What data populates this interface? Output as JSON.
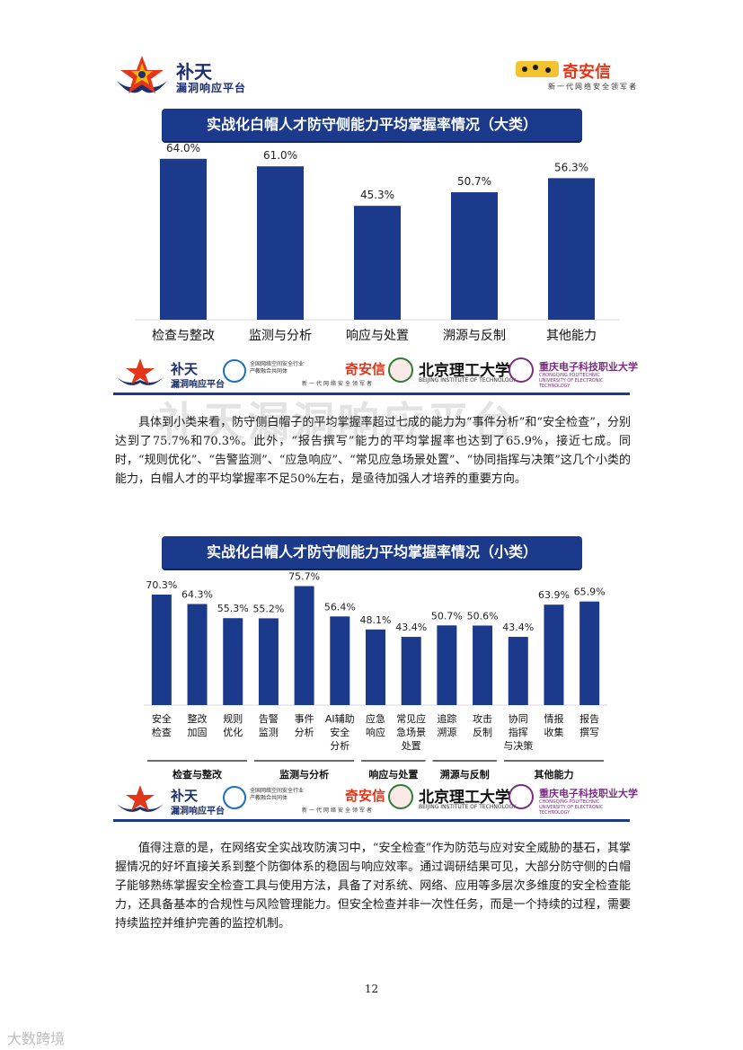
{
  "header": {
    "left_logo": {
      "line1": "补天",
      "line2": "漏洞响应平台"
    },
    "right_logo": {
      "name": "奇安信",
      "slogan": "新一代网络安全领军者"
    }
  },
  "chart_big": {
    "title": "实战化白帽人才防守侧能力平均掌握率情况（大类）"
  },
  "chart_small": {
    "title": "实战化白帽人才防守侧能力平均掌握率情况（小类）"
  },
  "footer_strip": {
    "butian1": "补天",
    "butian2": "漏洞响应平台",
    "cert_text": "全国网络空间安全行业产教融合共同体",
    "qax": "奇安信",
    "qax_sub": "新一代网络安全领军者",
    "bit": "北京理工大学",
    "bit_en": "BEIJING INSTITUTE OF TECHNOLOGY",
    "cq": "重庆电子科技职业大学",
    "cq_en": "CHONGQING POLYTECHNIC UNIVERSITY OF ELECTRONIC TECHNOLOGY"
  },
  "watermark": "补天漏洞响应平台",
  "paragraph1": "具体到小类来看，防守侧白帽子的平均掌握率超过七成的能力为“事件分析”和“安全检查”，分别达到了75.7%和70.3%。此外，“报告撰写”能力的平均掌握率也达到了65.9%，接近七成。同时，“规则优化”、“告警监测”、“应急响应”、“常见应急场景处置”、“协同指挥与决策”这几个小类的能力，白帽人才的平均掌握率不足50%左右，是亟待加强人才培养的重要方向。",
  "paragraph2": "值得注意的是，在网络安全实战攻防演习中，“安全检查”作为防范与应对安全威胁的基石，其掌握情况的好坏直接关系到整个防御体系的稳固与响应效率。通过调研结果可见，大部分防守侧的白帽子能够熟练掌握安全检查工具与使用方法，具备了对系统、网络、应用等多层次多维度的安全检查能力，还具备基本的合规性与风险管理能力。但安全检查并非一次性任务，而是一个持续的过程，需要持续监控并维护完善的监控机制。",
  "page_number": "12",
  "corner_mark": "大数跨境",
  "colors": {
    "bar": "#1b3a8c",
    "banner": "#1b3a8c",
    "axis": "#d9d9d9"
  },
  "chart_data": [
    {
      "type": "bar",
      "title": "实战化白帽人才防守侧能力平均掌握率情况（大类）",
      "categories": [
        "检查与整改",
        "监测与分析",
        "响应与处置",
        "溯源与反制",
        "其他能力"
      ],
      "values": [
        64.0,
        61.0,
        45.3,
        50.7,
        56.3
      ],
      "value_labels": [
        "64.0%",
        "61.0%",
        "45.3%",
        "50.7%",
        "56.3%"
      ],
      "unit": "%",
      "ylim": [
        0,
        70
      ],
      "grid": false,
      "legend": "none"
    },
    {
      "type": "bar",
      "title": "实战化白帽人才防守侧能力平均掌握率情况（小类）",
      "categories": [
        [
          "安全",
          "检查"
        ],
        [
          "整改",
          "加固"
        ],
        [
          "规则",
          "优化"
        ],
        [
          "告警",
          "监测"
        ],
        [
          "事件",
          "分析"
        ],
        [
          "AI辅助",
          "安全",
          "分析"
        ],
        [
          "应急",
          "响应"
        ],
        [
          "常见应",
          "急场景",
          "处置"
        ],
        [
          "追踪",
          "溯源"
        ],
        [
          "攻击",
          "反制"
        ],
        [
          "协同",
          "指挥",
          "与决策"
        ],
        [
          "情报",
          "收集"
        ],
        [
          "报告",
          "撰写"
        ]
      ],
      "values": [
        70.3,
        64.3,
        55.3,
        55.2,
        75.7,
        56.4,
        48.1,
        43.4,
        50.7,
        50.6,
        43.4,
        63.9,
        65.9
      ],
      "value_labels": [
        "70.3%",
        "64.3%",
        "55.3%",
        "55.2%",
        "75.7%",
        "56.4%",
        "48.1%",
        "43.4%",
        "50.7%",
        "50.6%",
        "43.4%",
        "63.9%",
        "65.9%"
      ],
      "groups": [
        {
          "label": "检查与整改",
          "start": 0,
          "end": 2
        },
        {
          "label": "监测与分析",
          "start": 3,
          "end": 5
        },
        {
          "label": "响应与处置",
          "start": 6,
          "end": 7
        },
        {
          "label": "溯源与反制",
          "start": 8,
          "end": 9
        },
        {
          "label": "其他能力",
          "start": 10,
          "end": 12
        }
      ],
      "unit": "%",
      "ylim": [
        0,
        80
      ],
      "grid": false,
      "legend": "none"
    }
  ]
}
